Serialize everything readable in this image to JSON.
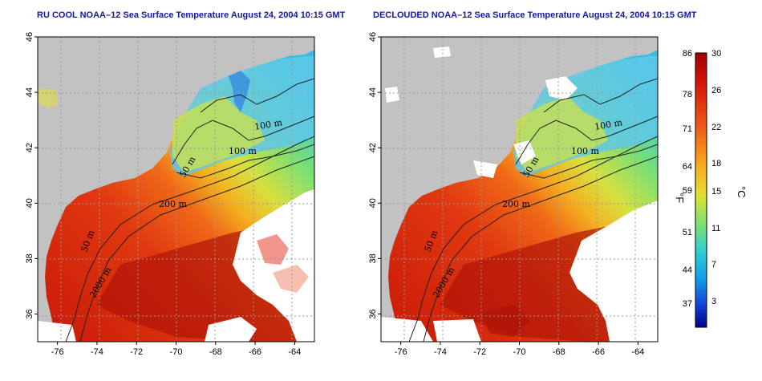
{
  "titles": {
    "left": "RU COOL NOAA–12 Sea Surface Temperature August 24, 2004 10:15 GMT",
    "right": "DECLOUDED NOAA–12 Sea Surface Temperature August 24, 2004 10:15 GMT"
  },
  "map": {
    "x_ticks": [
      "-76",
      "-74",
      "-72",
      "-70",
      "-68",
      "-66",
      "-64"
    ],
    "y_ticks": [
      "36",
      "38",
      "40",
      "42",
      "44",
      "46"
    ],
    "lon_range": [
      -77,
      -63
    ],
    "lat_range": [
      35,
      46
    ],
    "contour_labels": [
      "100 m",
      "100 m",
      "50 m",
      "200 m",
      "50 m",
      "2000 m"
    ],
    "colors": {
      "land": "#c2c2c2",
      "cloud": "#ffffff"
    }
  },
  "colorbar": {
    "fahrenheit_ticks": [
      "86",
      "78",
      "71",
      "64",
      "59",
      "51",
      "44",
      "37"
    ],
    "celsius_ticks": [
      "30",
      "26",
      "22",
      "18",
      "15",
      "11",
      "7",
      "3"
    ],
    "fahrenheit_unit": "°F",
    "celsius_unit": "°C",
    "colors": [
      "#c80000",
      "#e83010",
      "#f07020",
      "#f8b020",
      "#e8e030",
      "#a0e060",
      "#40d0c0",
      "#10a0e0",
      "#1040d0",
      "#000080"
    ]
  }
}
